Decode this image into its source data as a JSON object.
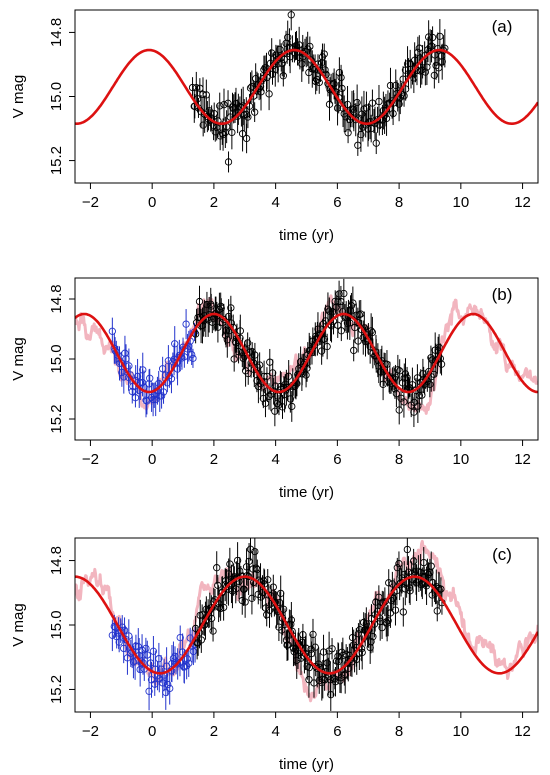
{
  "chart_data": [
    {
      "type": "scatter",
      "panel_label": "(a)",
      "xlabel": "time (yr)",
      "ylabel": "V mag",
      "xlim": [
        -2.5,
        12.5
      ],
      "ylim": [
        15.27,
        14.73
      ],
      "y_inverted": true,
      "xticks": [
        -2,
        0,
        2,
        4,
        6,
        8,
        10,
        12
      ],
      "yticks": [
        14.8,
        15.0,
        15.2
      ],
      "xtick_labels": [
        "−2",
        "0",
        "2",
        "4",
        "6",
        "8",
        "10",
        "12"
      ],
      "ytick_labels": [
        "14.8",
        "15.0",
        "15.2"
      ],
      "sinusoid": {
        "color": "#dd1111",
        "mean": 14.97,
        "amplitude": 0.115,
        "period": 4.7,
        "peak_x": -0.1
      },
      "observation_segments": [
        {
          "color": "#000000",
          "t_start": 1.3,
          "t_end": 9.5,
          "n": 210,
          "seed": 11
        }
      ]
    },
    {
      "type": "scatter",
      "panel_label": "(b)",
      "xlabel": "time (yr)",
      "ylabel": "V mag",
      "xlim": [
        -2.5,
        12.5
      ],
      "ylim": [
        15.27,
        14.73
      ],
      "y_inverted": true,
      "xticks": [
        -2,
        0,
        2,
        4,
        6,
        8,
        10,
        12
      ],
      "yticks": [
        14.8,
        15.0,
        15.2
      ],
      "xtick_labels": [
        "−2",
        "0",
        "2",
        "4",
        "6",
        "8",
        "10",
        "12"
      ],
      "ytick_labels": [
        "14.8",
        "15.0",
        "15.2"
      ],
      "sinusoid": {
        "color": "#dd1111",
        "mean": 14.98,
        "amplitude": 0.13,
        "period": 4.2,
        "peak_x": 2.0
      },
      "observation_segments": [
        {
          "color": "#2233cc",
          "t_start": -1.3,
          "t_end": 1.4,
          "n": 60,
          "seed": 23
        },
        {
          "color": "#000000",
          "t_start": 1.4,
          "t_end": 9.4,
          "n": 220,
          "seed": 37
        }
      ],
      "stochastic_model": {
        "color": "#f2b5bf",
        "t_start": -2.5,
        "t_end": 12.5
      }
    },
    {
      "type": "scatter",
      "panel_label": "(c)",
      "xlabel": "time (yr)",
      "ylabel": "V mag",
      "xlim": [
        -2.5,
        12.5
      ],
      "ylim": [
        15.27,
        14.73
      ],
      "y_inverted": true,
      "xticks": [
        -2,
        0,
        2,
        4,
        6,
        8,
        10,
        12
      ],
      "yticks": [
        14.8,
        15.0,
        15.2
      ],
      "xtick_labels": [
        "−2",
        "0",
        "2",
        "4",
        "6",
        "8",
        "10",
        "12"
      ],
      "ytick_labels": [
        "14.8",
        "15.0",
        "15.2"
      ],
      "sinusoid": {
        "color": "#dd1111",
        "mean": 15.0,
        "amplitude": 0.15,
        "period": 5.5,
        "peak_x": 3.0
      },
      "observation_segments": [
        {
          "color": "#2233cc",
          "t_start": -1.3,
          "t_end": 1.4,
          "n": 60,
          "seed": 53
        },
        {
          "color": "#000000",
          "t_start": 1.4,
          "t_end": 9.4,
          "n": 230,
          "seed": 71
        }
      ],
      "stochastic_model": {
        "color": "#f2b5bf",
        "t_start": -2.5,
        "t_end": 12.5
      }
    }
  ]
}
